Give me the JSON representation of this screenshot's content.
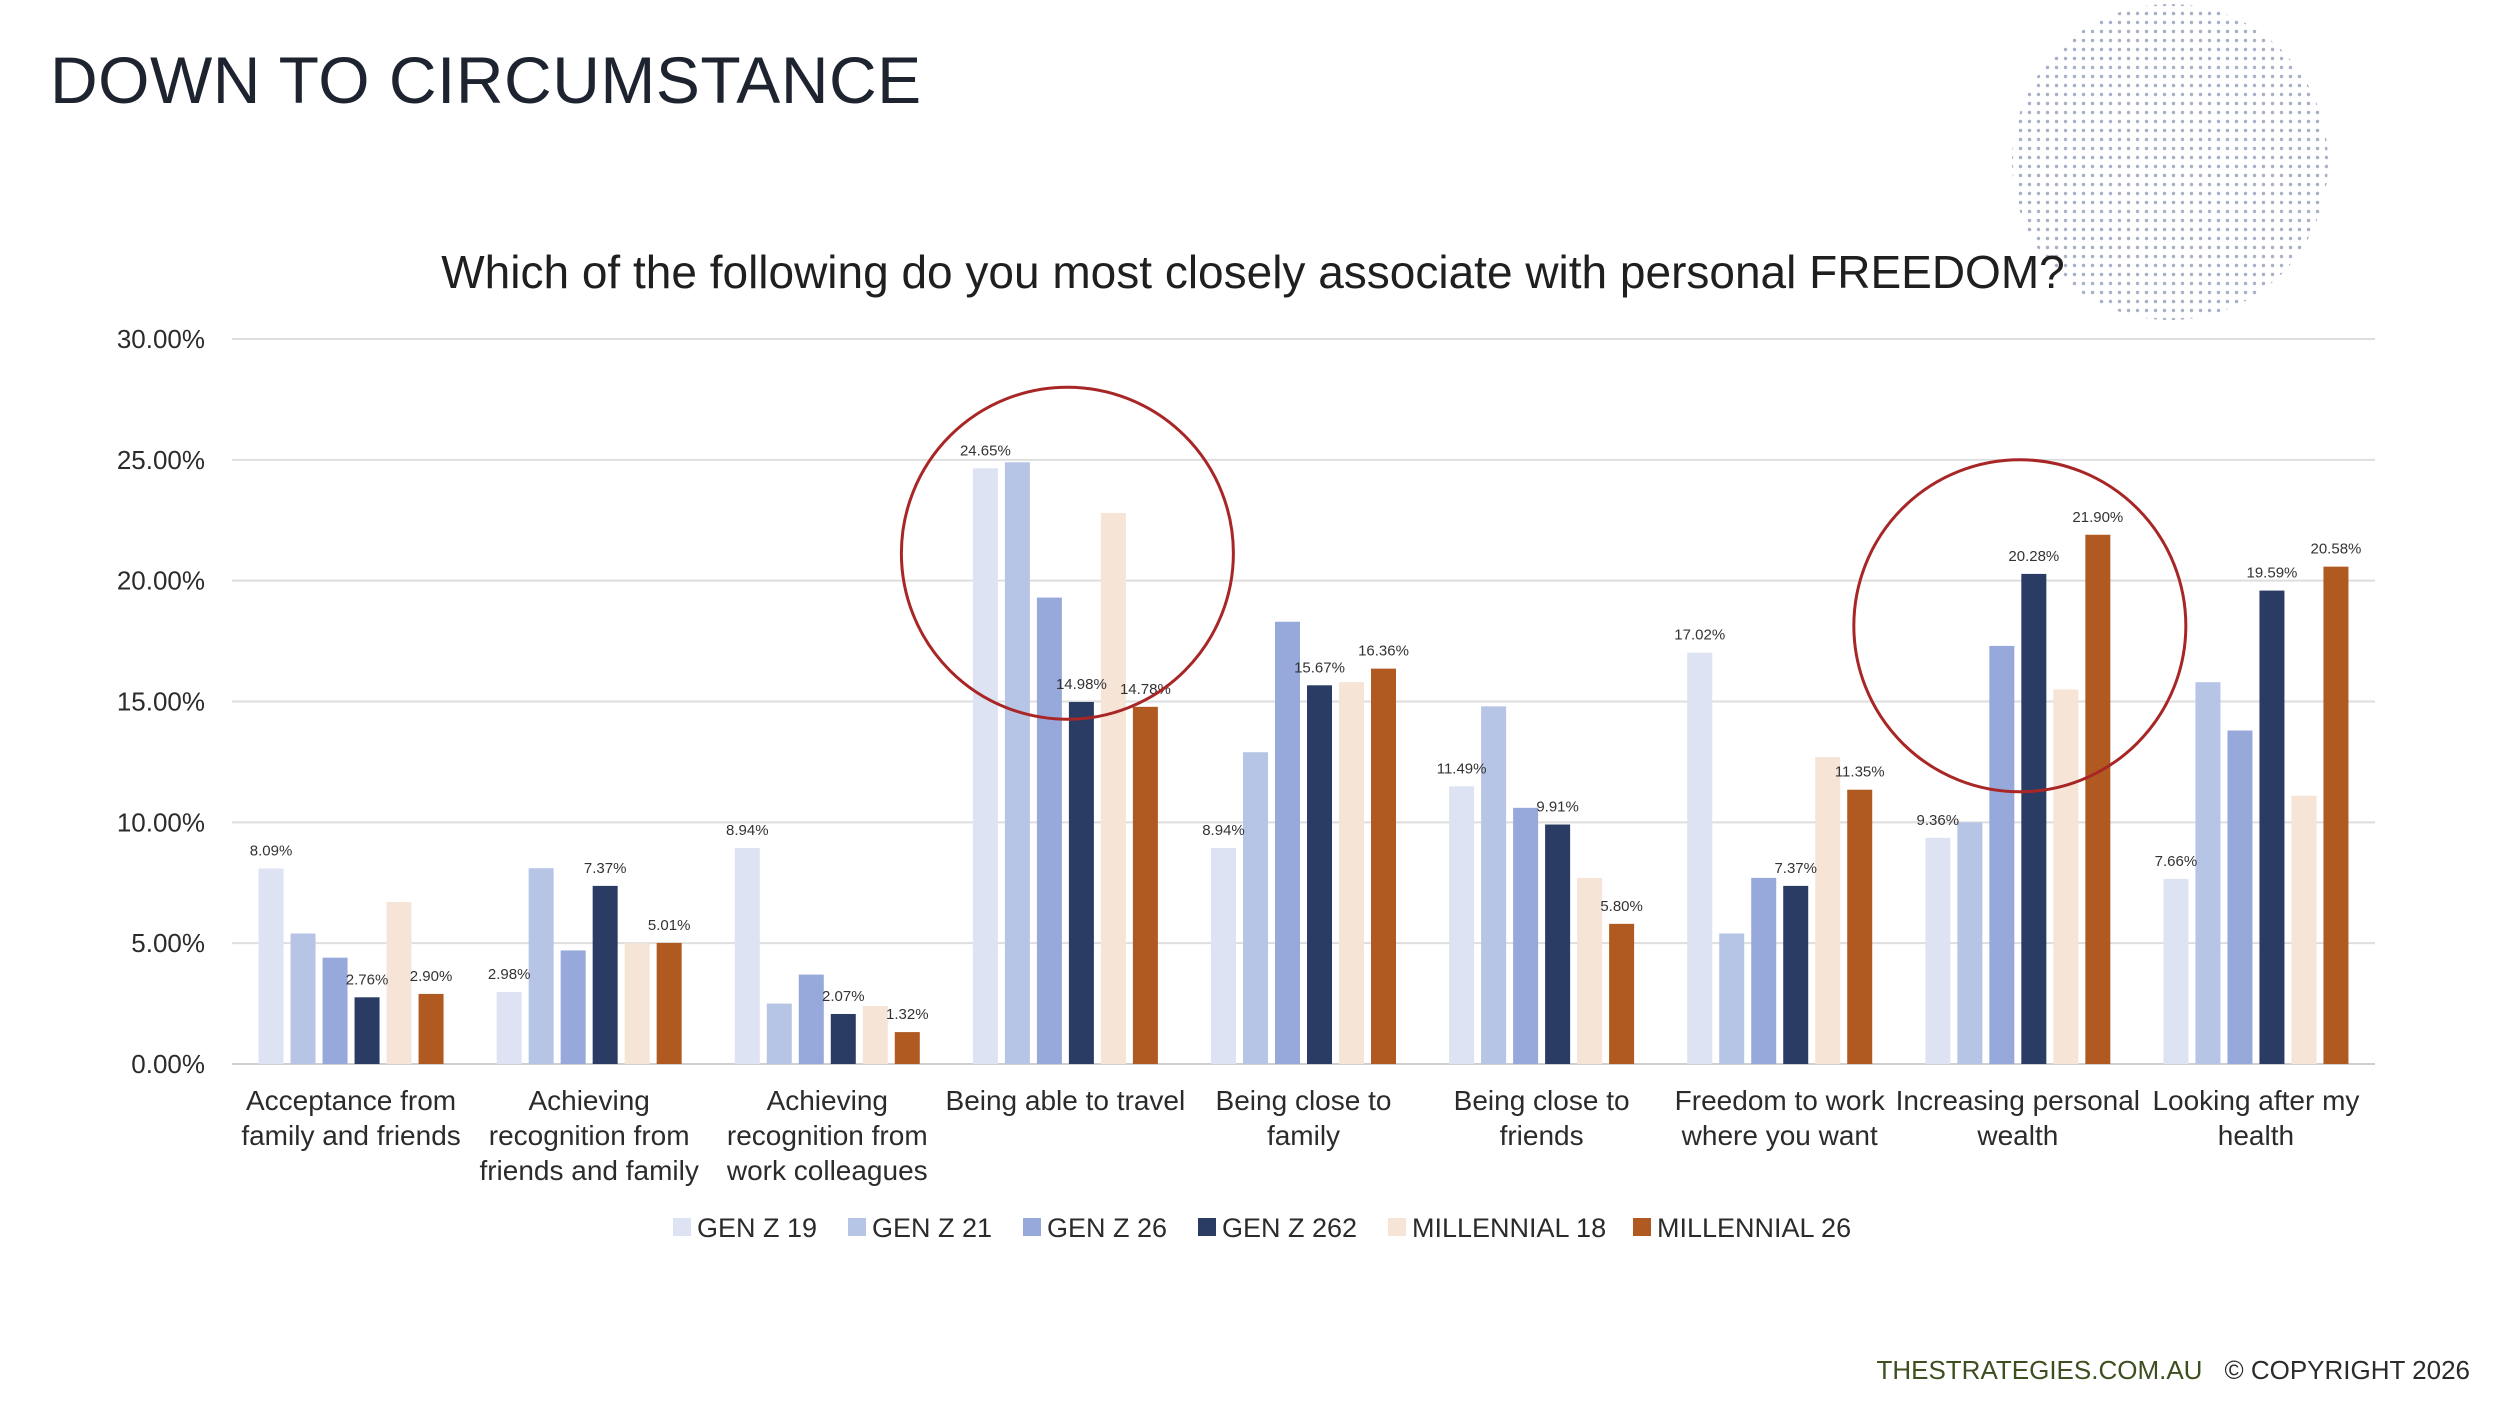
{
  "slide": {
    "title": "DOWN TO CIRCUMSTANCE",
    "footer_site": "THESTRATEGIES.COM.AU",
    "footer_copyright": "© COPYRIGHT 2026"
  },
  "chart_data": {
    "type": "bar",
    "title": "Which of the following do you most closely associate with personal FREEDOM?",
    "xlabel": "",
    "ylabel": "",
    "ylim": [
      0,
      30
    ],
    "yticks": [
      "0.00%",
      "5.00%",
      "10.00%",
      "15.00%",
      "20.00%",
      "25.00%",
      "30.00%"
    ],
    "grid": true,
    "legend_position": "bottom",
    "categories": [
      [
        "Acceptance from",
        "family and friends"
      ],
      [
        "Achieving",
        "recognition from",
        "friends and family"
      ],
      [
        "Achieving",
        "recognition from",
        "work colleagues"
      ],
      [
        "Being able to travel"
      ],
      [
        "Being close to",
        "family"
      ],
      [
        "Being close to",
        "friends"
      ],
      [
        "Freedom to work",
        "where you want"
      ],
      [
        "Increasing personal",
        "wealth"
      ],
      [
        "Looking after my",
        "health"
      ]
    ],
    "series": [
      {
        "name": "GEN Z 19",
        "color": "#dde3f2",
        "values": [
          8.09,
          2.98,
          8.94,
          24.65,
          8.94,
          11.49,
          17.02,
          9.36,
          7.66
        ],
        "labels": [
          "8.09%",
          "2.98%",
          "8.94%",
          "24.65%",
          "8.94%",
          "11.49%",
          "17.02%",
          "9.36%",
          "7.66%"
        ]
      },
      {
        "name": "GEN Z 21",
        "color": "#b6c4e6",
        "values": [
          5.4,
          8.1,
          2.5,
          24.9,
          12.9,
          14.8,
          5.4,
          10.0,
          15.8
        ],
        "labels": [
          "",
          "",
          "",
          "",
          "",
          "",
          "",
          "",
          ""
        ]
      },
      {
        "name": "GEN Z 26",
        "color": "#97a9da",
        "values": [
          4.4,
          4.7,
          3.7,
          19.3,
          18.3,
          10.6,
          7.7,
          17.3,
          13.8
        ],
        "labels": [
          "",
          "",
          "",
          "",
          "",
          "",
          "",
          "",
          ""
        ]
      },
      {
        "name": "GEN Z 262",
        "color": "#2a3b64",
        "values": [
          2.76,
          7.37,
          2.07,
          14.98,
          15.67,
          9.91,
          7.37,
          20.28,
          19.59
        ],
        "labels": [
          "2.76%",
          "7.37%",
          "2.07%",
          "14.98%",
          "15.67%",
          "9.91%",
          "7.37%",
          "20.28%",
          "19.59%"
        ]
      },
      {
        "name": "MILLENNIAL 18",
        "color": "#f6e4d6",
        "values": [
          6.7,
          5.0,
          2.4,
          22.8,
          15.8,
          7.7,
          12.7,
          15.5,
          11.1
        ],
        "labels": [
          "",
          "",
          "",
          "",
          "",
          "",
          "",
          "",
          ""
        ]
      },
      {
        "name": "MILLENNIAL 26",
        "color": "#b05a22",
        "values": [
          2.9,
          5.01,
          1.32,
          14.78,
          16.36,
          5.8,
          11.35,
          21.9,
          20.58
        ],
        "labels": [
          "2.90%",
          "5.01%",
          "1.32%",
          "14.78%",
          "16.36%",
          "5.80%",
          "11.35%",
          "21.90%",
          "20.58%"
        ]
      }
    ],
    "annotations": [
      {
        "type": "circle",
        "color": "#a82626",
        "around_category": "Being able to travel"
      },
      {
        "type": "circle",
        "color": "#a82626",
        "around_category": "Increasing personal wealth"
      }
    ]
  }
}
